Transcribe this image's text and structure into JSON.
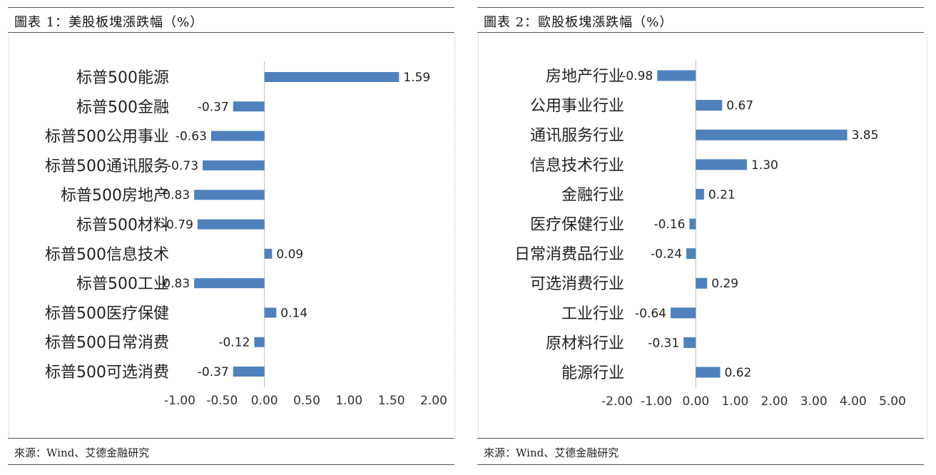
{
  "charts": [
    {
      "title": "圖表 1：美股板塊漲跌幅（%）",
      "source": "來源：Wind、艾德金融研究"
    },
    {
      "title": "圖表 2：歐股板塊漲跌幅（%）",
      "source": "來源：Wind、艾德金融研究"
    }
  ],
  "colors": {
    "bar": "#4f81bd",
    "axis": "#c8c8c8"
  },
  "chart_data": [
    {
      "type": "bar",
      "orientation": "horizontal",
      "title": "圖表 1：美股板塊漲跌幅（%）",
      "categories": [
        "标普500能源",
        "标普500金融",
        "标普500公用事业",
        "标普500通讯服务",
        "标普500房地产",
        "标普500材料",
        "标普500信息技术",
        "标普500工业",
        "标普500医疗保健",
        "标普500日常消费",
        "标普500可选消费"
      ],
      "values": [
        1.59,
        -0.37,
        -0.63,
        -0.73,
        -0.83,
        -0.79,
        0.09,
        -0.83,
        0.14,
        -0.12,
        -0.37
      ],
      "value_labels": [
        "1.59",
        "-0.37",
        "-0.63",
        "-0.73",
        "-0.83",
        "-0.79",
        "0.09",
        "-0.83",
        "0.14",
        "-0.12",
        "-0.37"
      ],
      "xlim": [
        -1.0,
        2.0
      ],
      "ticks": [
        -1.0,
        -0.5,
        0.0,
        0.5,
        1.0,
        1.5,
        2.0
      ],
      "tick_labels": [
        "-1.00",
        "-0.50",
        "0.00",
        "0.50",
        "1.00",
        "1.50",
        "2.00"
      ],
      "grid": false,
      "legend": "none"
    },
    {
      "type": "bar",
      "orientation": "horizontal",
      "title": "圖表 2：歐股板塊漲跌幅（%）",
      "categories": [
        "房地产行业",
        "公用事业行业",
        "通讯服务行业",
        "信息技术行业",
        "金融行业",
        "医疗保健行业",
        "日常消费品行业",
        "可选消费行业",
        "工业行业",
        "原材料行业",
        "能源行业"
      ],
      "values": [
        -0.98,
        0.67,
        3.85,
        1.3,
        0.21,
        -0.16,
        -0.24,
        0.29,
        -0.64,
        -0.31,
        0.62
      ],
      "value_labels": [
        "-0.98",
        "0.67",
        "3.85",
        "1.30",
        "0.21",
        "-0.16",
        "-0.24",
        "0.29",
        "-0.64",
        "-0.31",
        "0.62"
      ],
      "xlim": [
        -2.0,
        5.0
      ],
      "ticks": [
        -2.0,
        -1.0,
        0.0,
        1.0,
        2.0,
        3.0,
        4.0,
        5.0
      ],
      "tick_labels": [
        "-2.00",
        "-1.00",
        "0.00",
        "1.00",
        "2.00",
        "3.00",
        "4.00",
        "5.00"
      ],
      "grid": false,
      "legend": "none"
    }
  ]
}
